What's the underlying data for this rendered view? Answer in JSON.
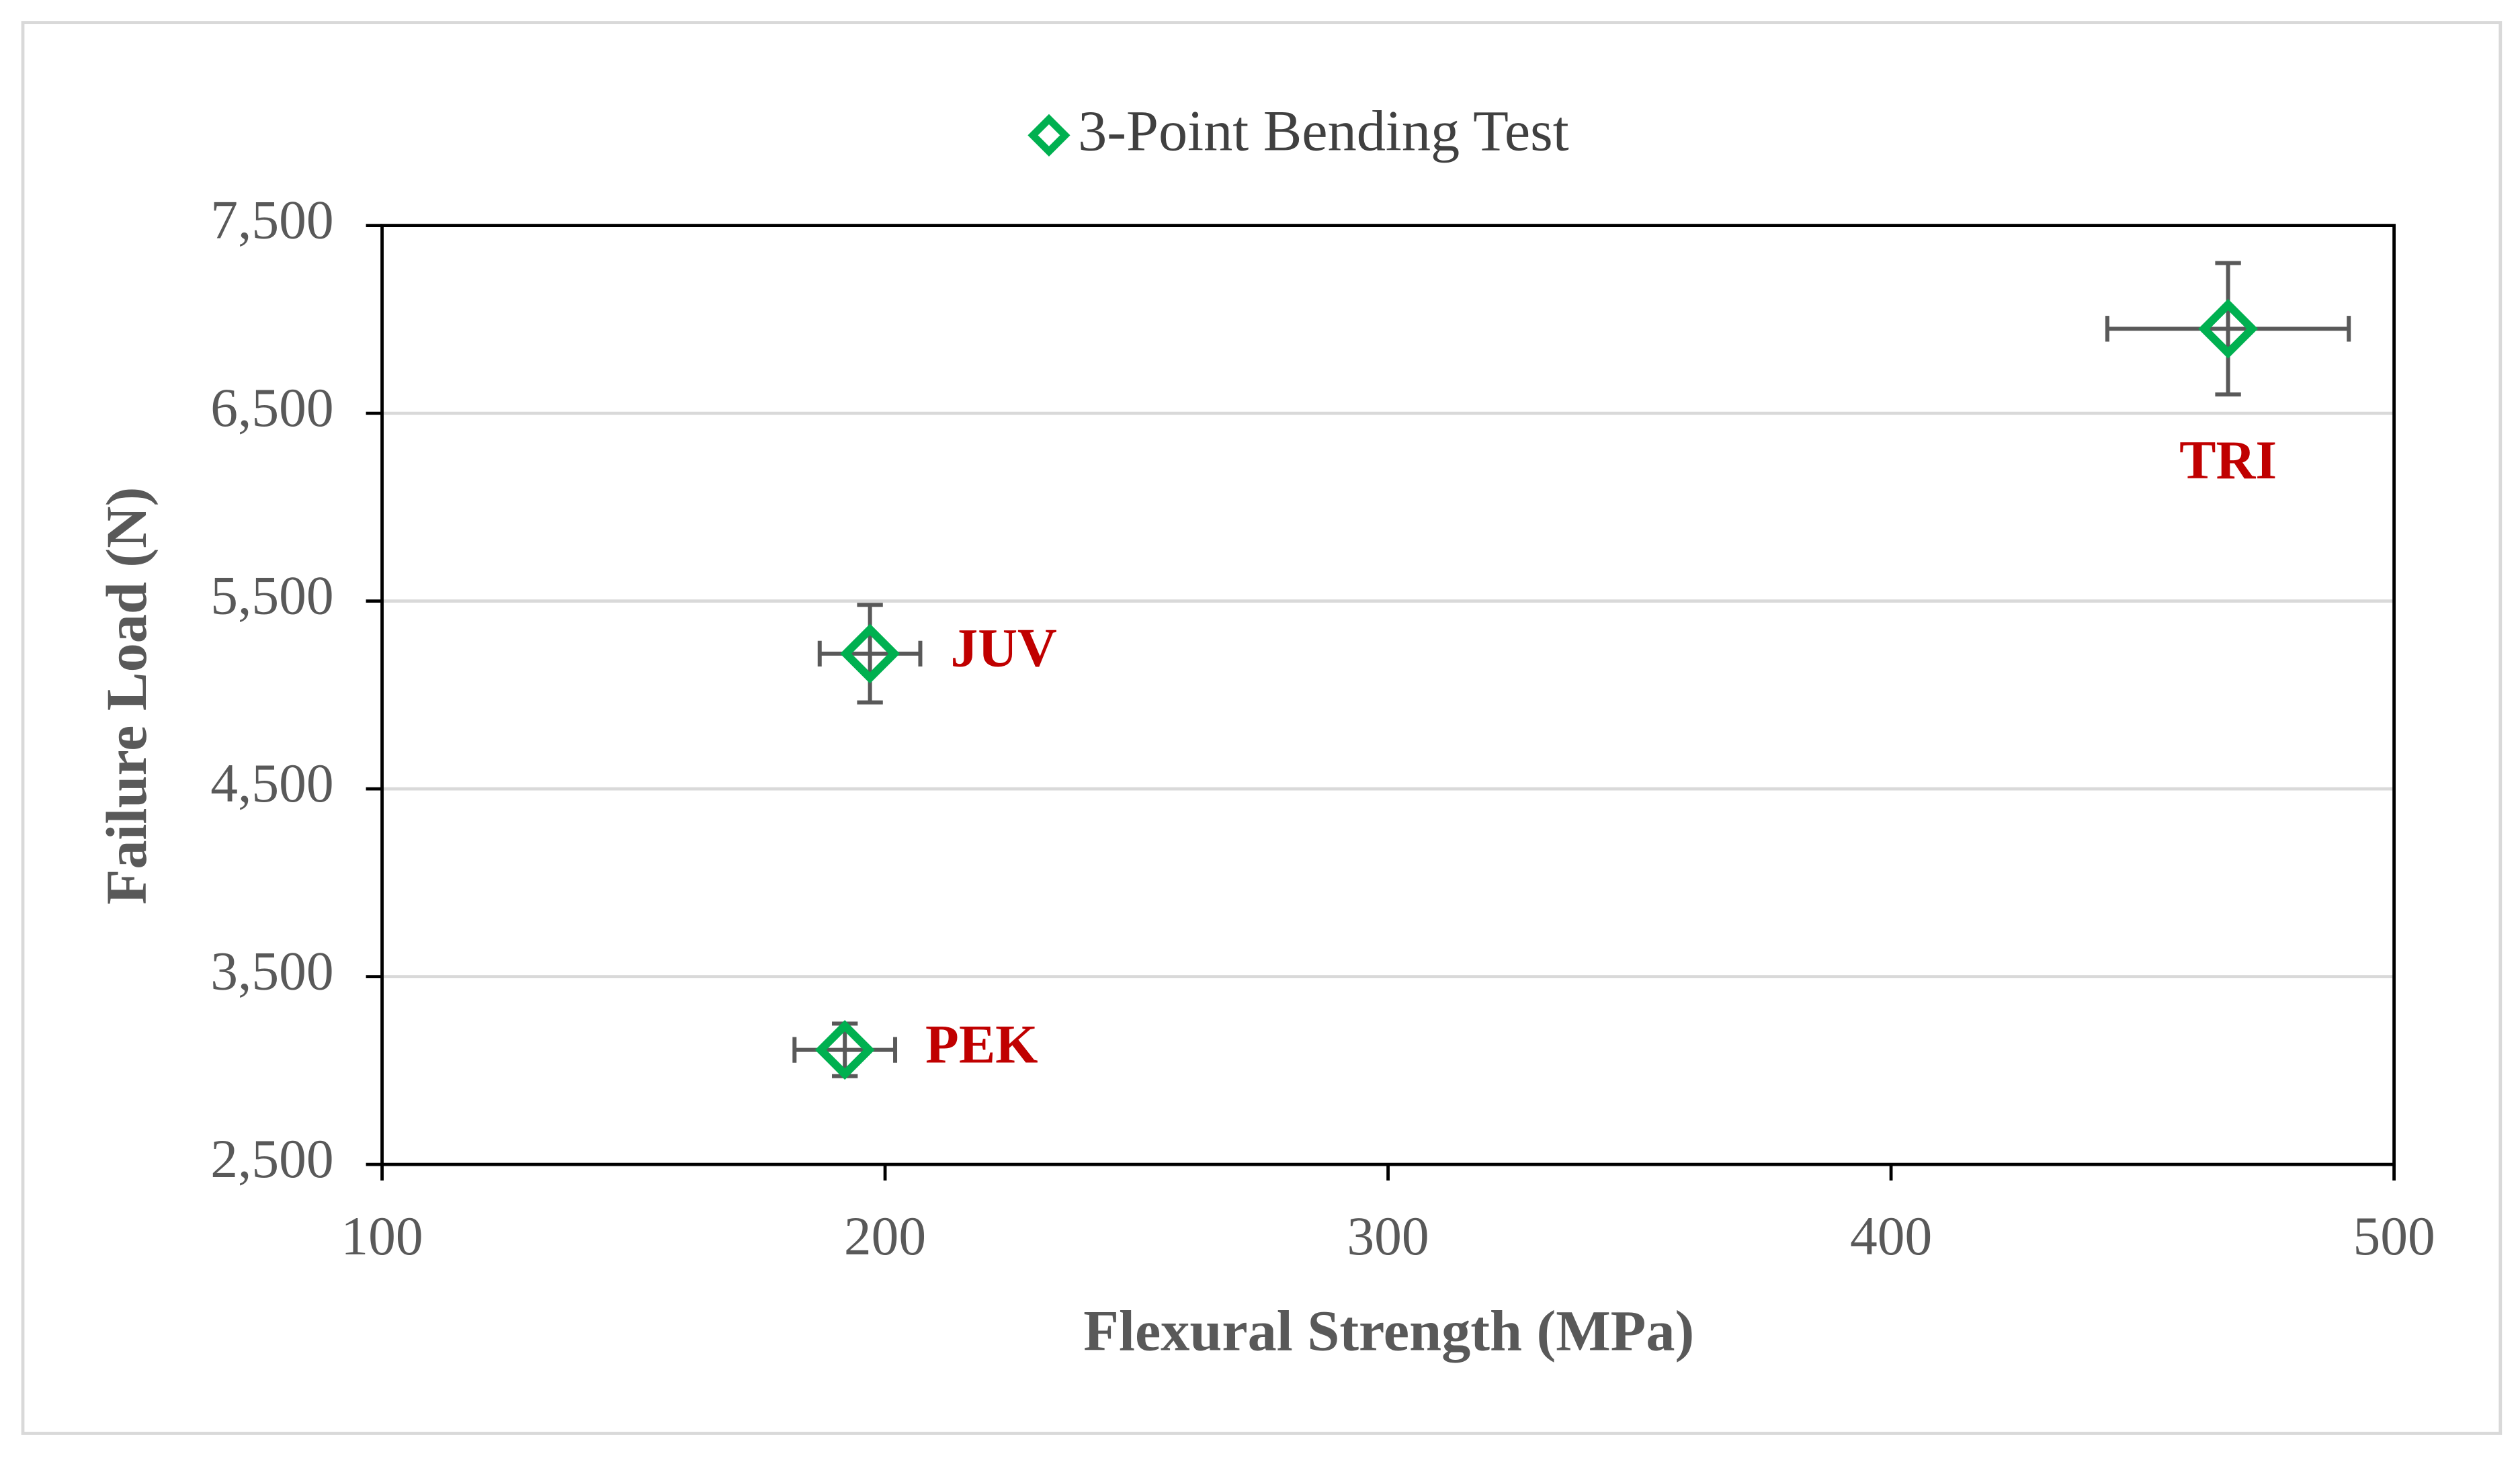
{
  "chart_data": {
    "type": "scatter",
    "xlabel": "Flexural Strength (MPa)",
    "ylabel": "Failure Load (N)",
    "xlim": [
      100,
      500
    ],
    "xticks": [
      100,
      200,
      300,
      400,
      500
    ],
    "ylim": [
      2500,
      7500
    ],
    "yticks": [
      {
        "value": 2500,
        "label": "2,500"
      },
      {
        "value": 3500,
        "label": "3,500"
      },
      {
        "value": 4500,
        "label": "4,500"
      },
      {
        "value": 5500,
        "label": "5,500"
      },
      {
        "value": 6500,
        "label": "6,500"
      },
      {
        "value": 7500,
        "label": "7,500"
      }
    ],
    "grid": true,
    "legend": "top",
    "series": [
      {
        "name": "3-Point Bending Test",
        "color": "#00b050",
        "error_color": "#595959",
        "label_color": "#c00000",
        "x": [
          467,
          197,
          192
        ],
        "values": [
          6950,
          5220,
          3110
        ],
        "x_err": [
          24,
          10,
          10
        ],
        "y_err": [
          350,
          260,
          140
        ],
        "point_labels": [
          "TRI",
          "JUV",
          "PEK"
        ]
      }
    ]
  }
}
